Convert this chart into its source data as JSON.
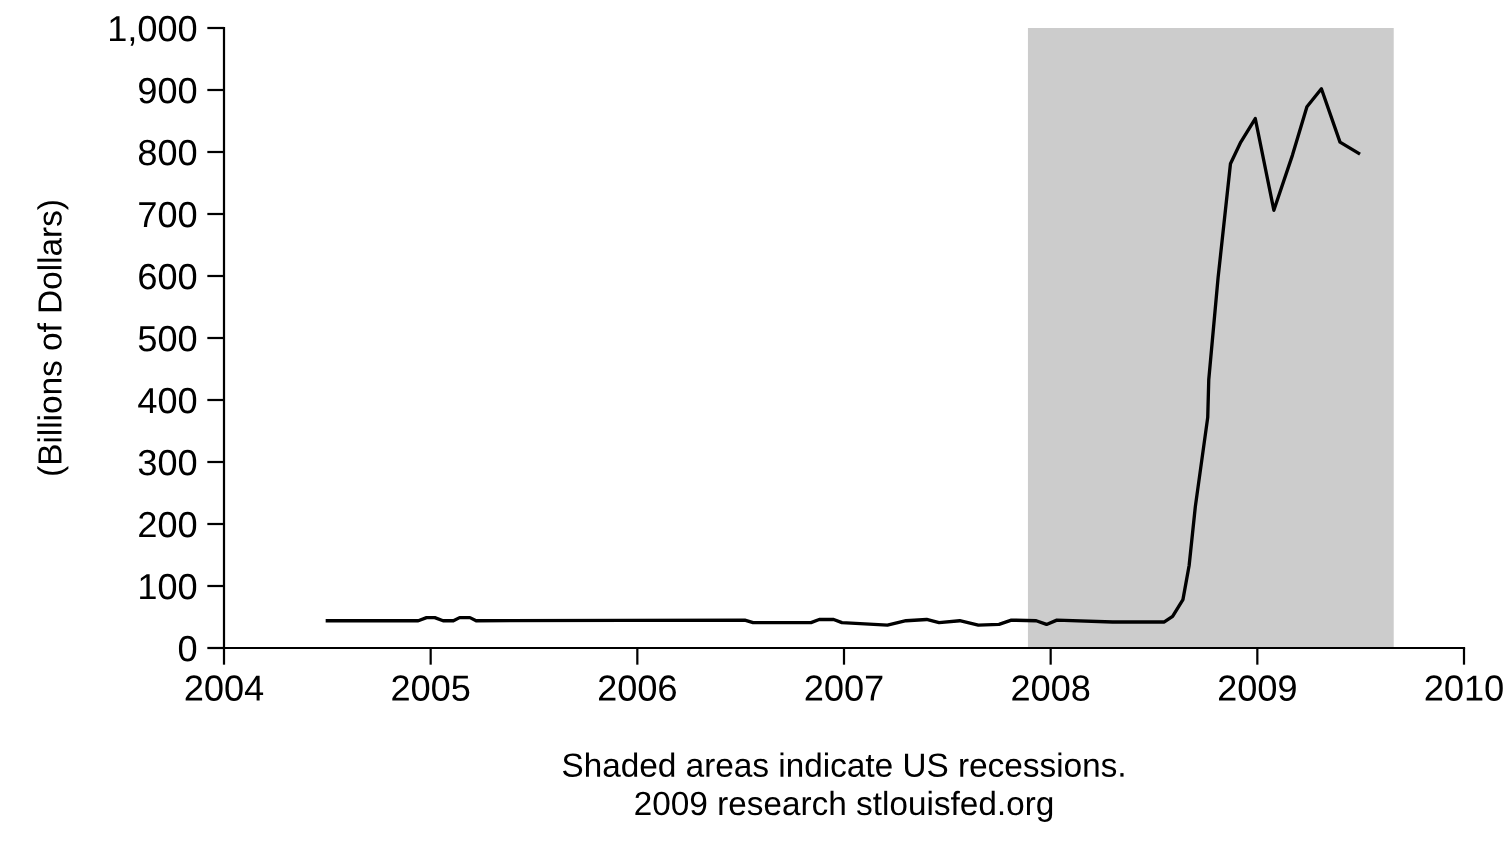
{
  "chart_data": {
    "type": "line",
    "ylabel": "(Billions of Dollars)",
    "xlabel": "Shaded areas indicate US recessions.\n2009 research stlouisfed.org",
    "x": [
      2004.5,
      2004.94,
      2004.98,
      2005.02,
      2005.06,
      2005.11,
      2005.14,
      2005.19,
      2005.22,
      2006.52,
      2006.56,
      2006.84,
      2006.88,
      2006.95,
      2006.99,
      2007.21,
      2007.3,
      2007.4,
      2007.46,
      2007.56,
      2007.65,
      2007.75,
      2007.81,
      2007.93,
      2007.98,
      2008.03,
      2008.3,
      2008.55,
      2008.59,
      2008.64,
      2008.67,
      2008.7,
      2008.76,
      2008.765,
      2008.81,
      2008.87,
      2008.92,
      2008.99,
      2009.08,
      2009.17,
      2009.24,
      2009.31,
      2009.4,
      2009.49
    ],
    "series": [
      {
        "color": "#000000",
        "values": [
          44,
          44,
          49,
          49,
          44,
          44,
          49,
          49,
          44,
          45,
          41,
          41,
          46,
          46,
          41,
          37,
          44,
          46,
          41,
          44,
          37,
          38,
          45,
          44,
          38,
          45,
          42,
          42,
          51,
          78,
          133,
          228,
          372,
          433,
          597,
          781,
          816,
          854,
          706,
          795,
          873,
          902,
          816,
          798
        ]
      }
    ],
    "xlim": [
      2004,
      2010
    ],
    "xticks": [
      2004,
      2005,
      2006,
      2007,
      2008,
      2009,
      2010
    ],
    "ylim": [
      0,
      1000
    ],
    "yticks": [
      0,
      100,
      200,
      300,
      400,
      500,
      600,
      700,
      800,
      900,
      {
        "value": 1000,
        "label": "1,000"
      }
    ],
    "bands": [
      {
        "axis": "x",
        "from": 2007.89,
        "to": 2009.66,
        "color": "#cccccc"
      }
    ],
    "grid": false,
    "legend": false,
    "marker": "none",
    "line_style": "solid"
  }
}
